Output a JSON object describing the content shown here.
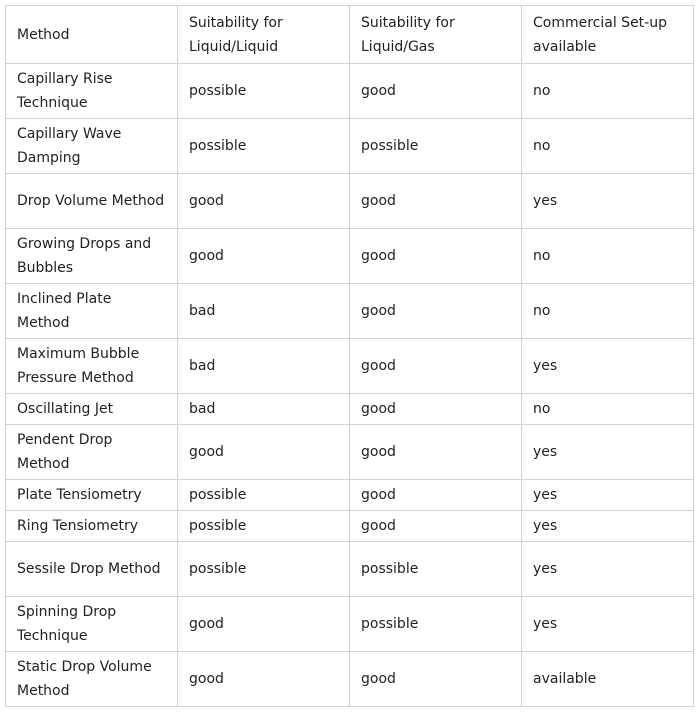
{
  "table": {
    "headers": [
      "Method",
      "Suitability for Liquid/Liquid",
      "Suitability for Liquid/Gas",
      "Commercial Set-up available"
    ],
    "rows": [
      [
        "Capillary Rise Technique",
        "possible",
        "good",
        "no"
      ],
      [
        "Capillary Wave Damping",
        "possible",
        "possible",
        "no"
      ],
      [
        "Drop Volume Method",
        "good",
        "good",
        "yes"
      ],
      [
        "Growing Drops and Bubbles",
        "good",
        "good",
        "no"
      ],
      [
        "Inclined Plate Method",
        "bad",
        "good",
        "no"
      ],
      [
        "Maximum Bubble Pressure Method",
        "bad",
        "good",
        "yes"
      ],
      [
        "Oscillating Jet",
        "bad",
        "good",
        "no"
      ],
      [
        "Pendent Drop Method",
        "good",
        "good",
        "yes"
      ],
      [
        "Plate Tensiometry",
        "possible",
        "good",
        "yes"
      ],
      [
        "Ring Tensiometry",
        "possible",
        "good",
        "yes"
      ],
      [
        "Sessile Drop Method",
        "possible",
        "possible",
        "yes"
      ],
      [
        "Spinning Drop Technique",
        "good",
        "possible",
        "yes"
      ],
      [
        "Static Drop Volume Method",
        "good",
        "good",
        "available"
      ]
    ]
  }
}
